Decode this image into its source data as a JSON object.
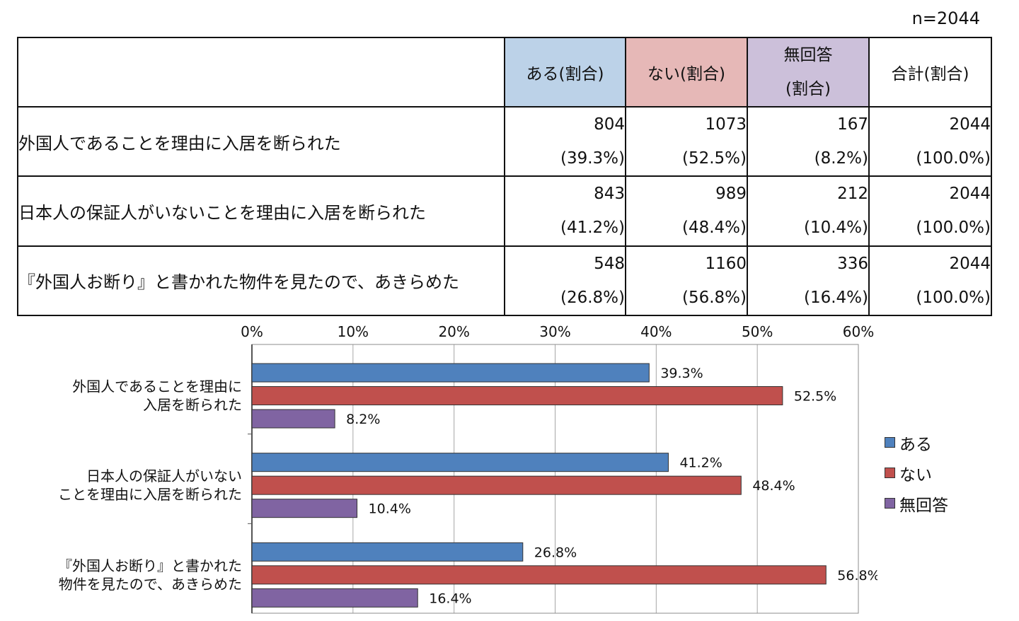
{
  "sample_label": "n=2044",
  "table": {
    "headers": [
      "ある(割合)",
      "ない(割合)",
      "無回答",
      "(割合)",
      "合計(割合)"
    ],
    "rows": [
      {
        "question": "外国人であることを理由に入居を断られた",
        "aru": "804",
        "aru_pct": "(39.3%)",
        "nai": "1073",
        "nai_pct": "(52.5%)",
        "mu": "167",
        "mu_pct": "(8.2%)",
        "total": "2044",
        "total_pct": "(100.0%)"
      },
      {
        "question": "日本人の保証人がいないことを理由に入居を断られた",
        "aru": "843",
        "aru_pct": "(41.2%)",
        "nai": "989",
        "nai_pct": "(48.4%)",
        "mu": "212",
        "mu_pct": "(10.4%)",
        "total": "2044",
        "total_pct": "(100.0%)"
      },
      {
        "question": "『外国人お断り』と書かれた物件を見たので、あきらめた",
        "aru": "548",
        "aru_pct": "(26.8%)",
        "nai": "1160",
        "nai_pct": "(56.8%)",
        "mu": "336",
        "mu_pct": "(16.4%)",
        "total": "2044",
        "total_pct": "(100.0%)"
      }
    ]
  },
  "colors": {
    "aru": "#4f81bd",
    "nai": "#c0504d",
    "mu": "#8064a2",
    "header_aru": "#bcd2e8",
    "header_nai": "#e6b8b7",
    "header_mu": "#ccc0da"
  },
  "chart_data": {
    "type": "bar",
    "orientation": "horizontal",
    "categories": [
      [
        "外国人であることを理由に",
        "入居を断られた"
      ],
      [
        "日本人の保証人がいない",
        "ことを理由に入居を断られた"
      ],
      [
        "『外国人お断り』と書かれた",
        "物件を見たので、あきらめた"
      ]
    ],
    "series": [
      {
        "name": "ある",
        "values": [
          39.3,
          41.2,
          26.8
        ],
        "color": "#4f81bd"
      },
      {
        "name": "ない",
        "values": [
          52.5,
          48.4,
          56.8
        ],
        "color": "#c0504d"
      },
      {
        "name": "無回答",
        "values": [
          8.2,
          10.4,
          16.4
        ],
        "color": "#8064a2"
      }
    ],
    "data_labels": [
      [
        "39.3%",
        "41.2%",
        "26.8%"
      ],
      [
        "52.5%",
        "48.4%",
        "56.8%"
      ],
      [
        "8.2%",
        "10.4%",
        "16.4%"
      ]
    ],
    "xlim": [
      0,
      60
    ],
    "xticks": [
      "0%",
      "10%",
      "20%",
      "30%",
      "40%",
      "50%",
      "60%"
    ],
    "grid": true,
    "axis_position": "top",
    "legend_position": "right"
  }
}
